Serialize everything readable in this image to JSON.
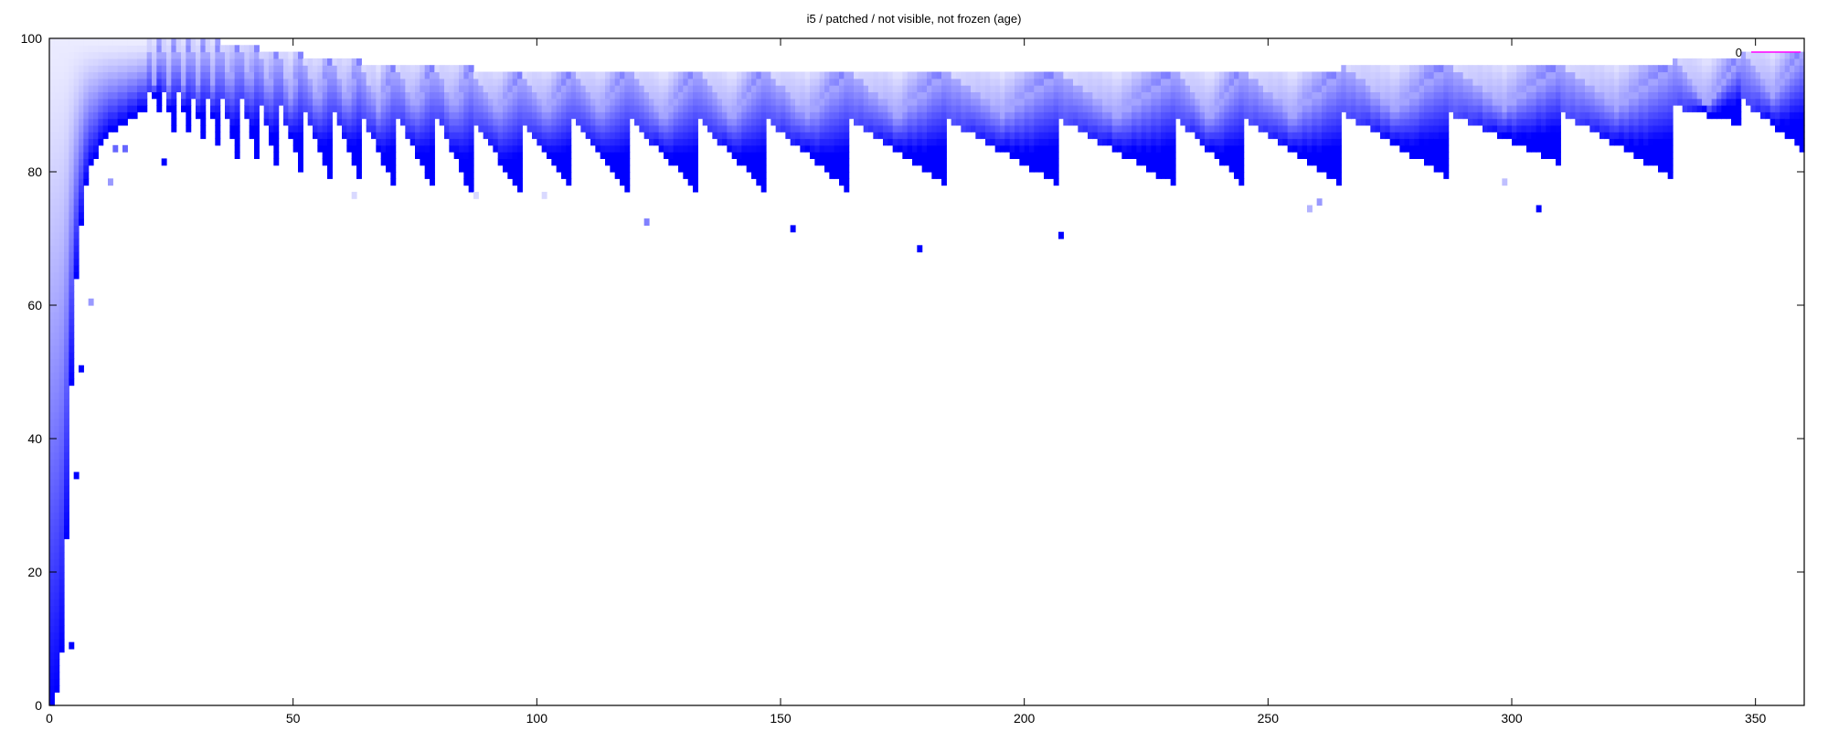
{
  "chart_data": {
    "type": "heatmap",
    "title": "i5 / patched / not visible, not frozen (age)",
    "xlabel": "",
    "ylabel": "",
    "xlim": [
      0,
      360
    ],
    "ylim": [
      0,
      100
    ],
    "x_ticks": [
      "0",
      "50",
      "100",
      "150",
      "200",
      "250",
      "300",
      "350"
    ],
    "y_ticks": [
      "0",
      "20",
      "40",
      "60",
      "80",
      "100"
    ],
    "grid": false,
    "legend": {
      "position": "top-right",
      "entries": [
        {
          "label": "0"
        }
      ]
    },
    "colors": {
      "cell": "#0000ff",
      "legend_line": "#ff00ff",
      "axis": "#000000"
    },
    "bands": {
      "description_free": true,
      "early_ramp": [
        [
          0,
          0
        ],
        [
          1,
          2
        ],
        [
          2,
          8
        ],
        [
          3,
          25
        ],
        [
          4,
          48
        ],
        [
          5,
          64
        ],
        [
          6,
          72
        ],
        [
          7,
          78
        ],
        [
          8,
          81
        ],
        [
          10,
          84
        ],
        [
          12,
          86
        ],
        [
          14,
          87
        ],
        [
          16,
          88
        ],
        [
          18,
          89
        ],
        [
          20,
          89
        ]
      ],
      "teeth": [
        {
          "x_start": 20,
          "x_end": 23,
          "top": 99,
          "bottom": 88
        },
        {
          "x_start": 23,
          "x_end": 26,
          "top": 99,
          "bottom": 84
        },
        {
          "x_start": 26,
          "x_end": 29,
          "top": 99,
          "bottom": 84
        },
        {
          "x_start": 29,
          "x_end": 32,
          "top": 99,
          "bottom": 83
        },
        {
          "x_start": 32,
          "x_end": 35,
          "top": 99,
          "bottom": 82
        },
        {
          "x_start": 35,
          "x_end": 39,
          "top": 98,
          "bottom": 81
        },
        {
          "x_start": 39,
          "x_end": 43,
          "top": 98,
          "bottom": 80
        },
        {
          "x_start": 43,
          "x_end": 47,
          "top": 97,
          "bottom": 79
        },
        {
          "x_start": 47,
          "x_end": 52,
          "top": 97,
          "bottom": 79
        },
        {
          "x_start": 52,
          "x_end": 58,
          "top": 96,
          "bottom": 78
        },
        {
          "x_start": 58,
          "x_end": 64,
          "top": 96,
          "bottom": 78
        },
        {
          "x_start": 64,
          "x_end": 71,
          "top": 95,
          "bottom": 77
        },
        {
          "x_start": 71,
          "x_end": 79,
          "top": 95,
          "bottom": 77
        },
        {
          "x_start": 79,
          "x_end": 87,
          "top": 95,
          "bottom": 76
        },
        {
          "x_start": 87,
          "x_end": 97,
          "top": 94,
          "bottom": 76
        },
        {
          "x_start": 97,
          "x_end": 107,
          "top": 94,
          "bottom": 77
        },
        {
          "x_start": 107,
          "x_end": 119,
          "top": 94,
          "bottom": 77
        },
        {
          "x_start": 119,
          "x_end": 133,
          "top": 94,
          "bottom": 77
        },
        {
          "x_start": 133,
          "x_end": 147,
          "top": 94,
          "bottom": 77
        },
        {
          "x_start": 147,
          "x_end": 164,
          "top": 94,
          "bottom": 77
        },
        {
          "x_start": 164,
          "x_end": 184,
          "top": 94,
          "bottom": 78
        },
        {
          "x_start": 184,
          "x_end": 207,
          "top": 94,
          "bottom": 78
        },
        {
          "x_start": 207,
          "x_end": 231,
          "top": 94,
          "bottom": 78
        },
        {
          "x_start": 231,
          "x_end": 245,
          "top": 94,
          "bottom": 78
        },
        {
          "x_start": 245,
          "x_end": 265,
          "top": 94,
          "bottom": 78
        },
        {
          "x_start": 265,
          "x_end": 287,
          "top": 95,
          "bottom": 79
        },
        {
          "x_start": 287,
          "x_end": 310,
          "top": 95,
          "bottom": 81
        },
        {
          "x_start": 310,
          "x_end": 333,
          "top": 95,
          "bottom": 79
        },
        {
          "x_start": 333,
          "x_end": 347,
          "top": 96,
          "bottom": 87
        },
        {
          "x_start": 347,
          "x_end": 360,
          "top": 97,
          "bottom": 83
        }
      ],
      "outliers": [
        {
          "x": 4,
          "y": 9,
          "i": 1.0
        },
        {
          "x": 5,
          "y": 34.5,
          "i": 1.0
        },
        {
          "x": 6,
          "y": 50.5,
          "i": 1.0
        },
        {
          "x": 8,
          "y": 60.5,
          "i": 0.4
        },
        {
          "x": 12,
          "y": 78.5,
          "i": 0.4
        },
        {
          "x": 13,
          "y": 83.5,
          "i": 0.6
        },
        {
          "x": 15,
          "y": 83.5,
          "i": 0.6
        },
        {
          "x": 23,
          "y": 81.5,
          "i": 1.0
        },
        {
          "x": 62,
          "y": 76.5,
          "i": 0.15
        },
        {
          "x": 87,
          "y": 76.5,
          "i": 0.15
        },
        {
          "x": 101,
          "y": 76.5,
          "i": 0.15
        },
        {
          "x": 122,
          "y": 72.5,
          "i": 0.5
        },
        {
          "x": 152,
          "y": 71.5,
          "i": 1.0
        },
        {
          "x": 178,
          "y": 68.5,
          "i": 1.0
        },
        {
          "x": 207,
          "y": 70.5,
          "i": 1.0
        },
        {
          "x": 258,
          "y": 74.5,
          "i": 0.3
        },
        {
          "x": 260,
          "y": 75.5,
          "i": 0.4
        },
        {
          "x": 298,
          "y": 78.5,
          "i": 0.25
        },
        {
          "x": 305,
          "y": 74.5,
          "i": 1.0
        }
      ]
    }
  }
}
